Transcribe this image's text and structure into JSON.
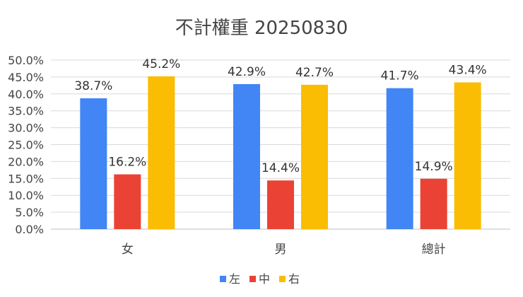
{
  "chart_data": {
    "type": "bar",
    "title": "不計權重 20250830",
    "xlabel": "",
    "ylabel": "",
    "categories": [
      "女",
      "男",
      "總計"
    ],
    "series": [
      {
        "name": "左",
        "color": "#4285F4",
        "values": [
          38.7,
          42.9,
          41.7
        ]
      },
      {
        "name": "中",
        "color": "#EA4335",
        "values": [
          16.2,
          14.4,
          14.9
        ]
      },
      {
        "name": "右",
        "color": "#FBBC04",
        "values": [
          45.2,
          42.7,
          43.4
        ]
      }
    ],
    "ylim": [
      0,
      50
    ],
    "yticks": [
      "0.0%",
      "5.0%",
      "10.0%",
      "15.0%",
      "20.0%",
      "25.0%",
      "30.0%",
      "35.0%",
      "40.0%",
      "45.0%",
      "50.0%"
    ],
    "data_labels": [
      [
        "38.7%",
        "42.9%",
        "41.7%"
      ],
      [
        "16.2%",
        "14.4%",
        "14.9%"
      ],
      [
        "45.2%",
        "42.7%",
        "43.4%"
      ]
    ],
    "grid": true,
    "legend_position": "bottom"
  }
}
